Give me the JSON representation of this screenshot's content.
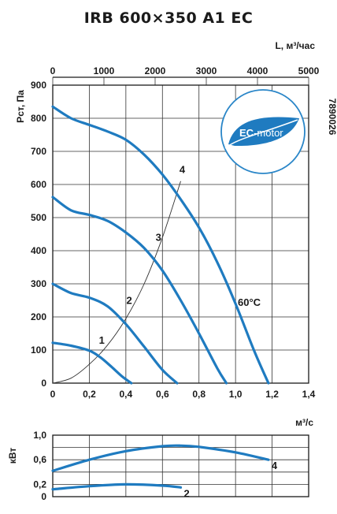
{
  "title": "IRB 600×350 A1 EC",
  "logo": {
    "text_bold": "EC",
    "text_rest": "-motor",
    "color": "#1f7bc0"
  },
  "code": "7890026",
  "temperature_label": "60°C",
  "colors": {
    "curve": "#1f7bc0",
    "grid": "#333333"
  },
  "chart_data": [
    {
      "type": "line",
      "ylabel": "Pст, Па",
      "xlabel_bottom": "м³/с",
      "xlabel_top": "L, м³/час",
      "xlim": [
        0,
        1.4
      ],
      "ylim": [
        0,
        900
      ],
      "x_ticks": [
        "0",
        "0,2",
        "0,4",
        "0,6",
        "0,8",
        "1,0",
        "1,2",
        "1,4"
      ],
      "x_top_ticks": [
        "0",
        "1000",
        "2000",
        "3000",
        "4000",
        "5000"
      ],
      "x_top_range": [
        0,
        5000
      ],
      "y_ticks": [
        "0",
        "100",
        "200",
        "300",
        "400",
        "500",
        "600",
        "700",
        "800",
        "900"
      ],
      "grid": true,
      "series": [
        {
          "name": "1",
          "x": [
            0,
            0.1,
            0.2,
            0.26,
            0.32,
            0.38,
            0.43
          ],
          "y": [
            122,
            113,
            98,
            78,
            50,
            20,
            0
          ],
          "label_at": [
            0.27,
            110
          ]
        },
        {
          "name": "2",
          "x": [
            0,
            0.1,
            0.2,
            0.3,
            0.4,
            0.5,
            0.6,
            0.68
          ],
          "y": [
            300,
            272,
            258,
            232,
            178,
            110,
            40,
            0
          ],
          "label_at": [
            0.42,
            230
          ]
        },
        {
          "name": "3",
          "x": [
            0,
            0.1,
            0.2,
            0.3,
            0.4,
            0.5,
            0.6,
            0.7,
            0.8,
            0.9,
            0.95
          ],
          "y": [
            562,
            522,
            508,
            490,
            455,
            408,
            340,
            250,
            150,
            45,
            0
          ],
          "label_at": [
            0.58,
            420
          ]
        },
        {
          "name": "4",
          "x": [
            0,
            0.1,
            0.2,
            0.3,
            0.4,
            0.5,
            0.6,
            0.7,
            0.8,
            0.9,
            1.0,
            1.1,
            1.18
          ],
          "y": [
            835,
            800,
            780,
            760,
            735,
            690,
            630,
            555,
            470,
            365,
            240,
            100,
            0
          ],
          "label_at": [
            0.71,
            625
          ]
        }
      ],
      "system_curve": {
        "x": [
          0,
          0.1,
          0.2,
          0.3,
          0.4,
          0.5,
          0.6,
          0.7
        ],
        "y": [
          0,
          15,
          57,
          115,
          195,
          300,
          440,
          610
        ]
      }
    },
    {
      "type": "line",
      "ylabel": "кВт",
      "xlim": [
        0,
        1.4
      ],
      "ylim": [
        0,
        1.0
      ],
      "y_ticks": [
        "0",
        "0,2",
        "0,6",
        "1,0"
      ],
      "grid": true,
      "series": [
        {
          "name": "4",
          "x": [
            0,
            0.2,
            0.4,
            0.6,
            0.7,
            0.8,
            1.0,
            1.18
          ],
          "y": [
            0.42,
            0.6,
            0.74,
            0.82,
            0.83,
            0.81,
            0.72,
            0.6
          ]
        },
        {
          "name": "2",
          "x": [
            0,
            0.2,
            0.4,
            0.6,
            0.7
          ],
          "y": [
            0.12,
            0.17,
            0.2,
            0.18,
            0.15
          ]
        }
      ]
    }
  ]
}
